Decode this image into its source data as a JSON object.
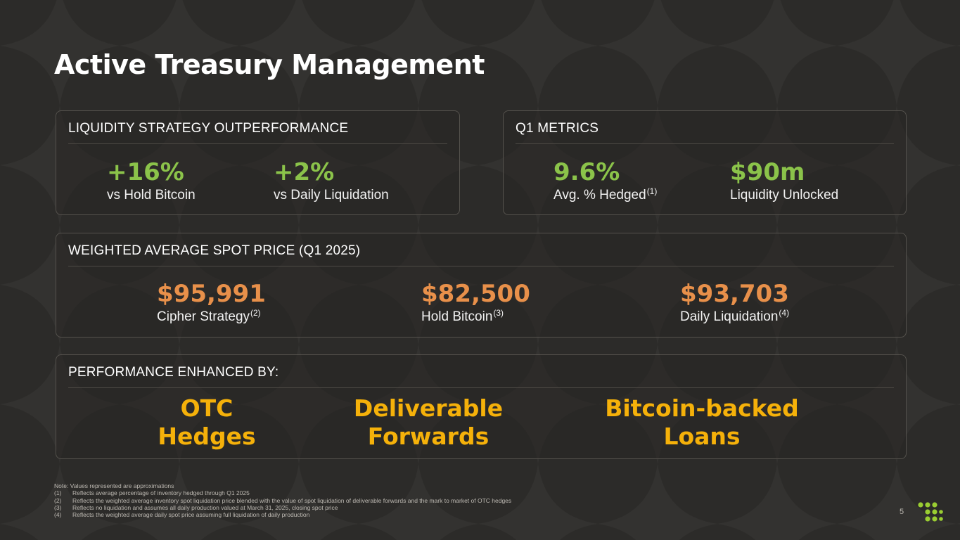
{
  "slide": {
    "title": "Active Treasury Management",
    "page_number": "5"
  },
  "liquidity_card": {
    "header": "LIQUIDITY STRATEGY OUTPERFORMANCE",
    "metrics": [
      {
        "value": "+16%",
        "label": "vs Hold Bitcoin"
      },
      {
        "value": "+2%",
        "label": "vs Daily Liquidation"
      }
    ]
  },
  "q1_card": {
    "header": "Q1 METRICS",
    "metrics": [
      {
        "value": "9.6%",
        "label": "Avg. % Hedged",
        "footnote": "(1)"
      },
      {
        "value": "$90m",
        "label": "Liquidity Unlocked"
      }
    ]
  },
  "spot_card": {
    "header": "WEIGHTED AVERAGE SPOT PRICE (Q1 2025)",
    "metrics": [
      {
        "value": "$95,991",
        "label": "Cipher Strategy",
        "footnote": "(2)"
      },
      {
        "value": "$82,500",
        "label": "Hold Bitcoin",
        "footnote": "(3)"
      },
      {
        "value": "$93,703",
        "label": "Daily Liquidation",
        "footnote": "(4)"
      }
    ]
  },
  "performance_card": {
    "header": "PERFORMANCE ENHANCED BY:",
    "items": [
      {
        "line1": "OTC",
        "line2": "Hedges"
      },
      {
        "line1": "Deliverable",
        "line2": "Forwards"
      },
      {
        "line1": "Bitcoin-backed",
        "line2": "Loans"
      }
    ]
  },
  "notes": {
    "intro": "Note: Values represented are approximations",
    "items": [
      {
        "num": "(1)",
        "text": "Reflects average percentage of inventory hedged through Q1 2025"
      },
      {
        "num": "(2)",
        "text": "Reflects the weighted average inventory spot liquidation price blended with the value of spot liquidation of deliverable forwards and the mark to market of OTC hedges"
      },
      {
        "num": "(3)",
        "text": "Reflects no liquidation and assumes all daily production valued at March 31, 2025, closing spot price"
      },
      {
        "num": "(4)",
        "text": "Reflects the weighted average daily spot price assuming full liquidation of daily production"
      }
    ]
  },
  "colors": {
    "background": "#2c2b29",
    "green_accent": "#8bc34a",
    "orange_accent": "#e8904a",
    "gold_accent": "#f5b10a",
    "logo": "#9acd32"
  },
  "icons": {
    "logo": "cipher-dot-grid-logo"
  }
}
